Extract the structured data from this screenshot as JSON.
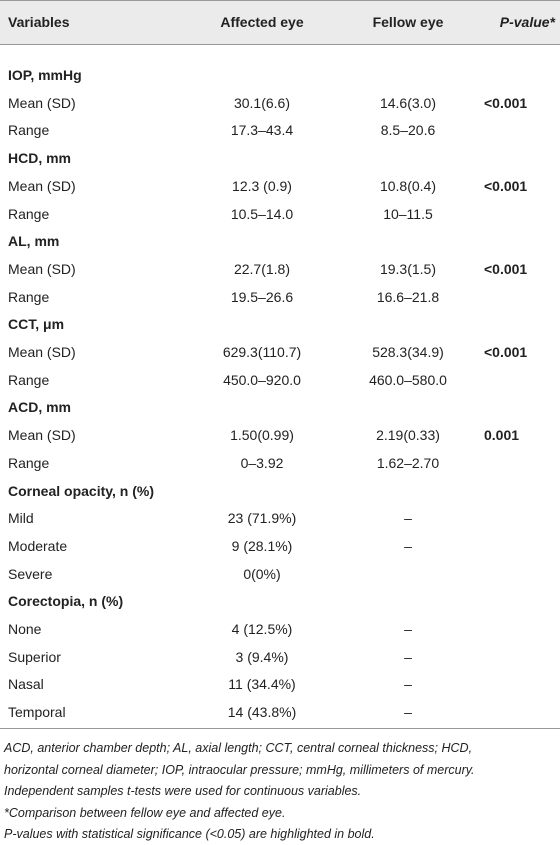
{
  "table": {
    "header": [
      "Variables",
      "Affected eye",
      "Fellow eye",
      "P-value*"
    ],
    "sections": [
      {
        "title": "IOP, mmHg",
        "rows": [
          [
            "Mean (SD)",
            "30.1(6.6)",
            "14.6(3.0)",
            "<0.001"
          ],
          [
            "Range",
            "17.3–43.4",
            "8.5–20.6"
          ]
        ]
      },
      {
        "title": "HCD, mm",
        "rows": [
          [
            "Mean (SD)",
            "12.3 (0.9)",
            "10.8(0.4)",
            "<0.001"
          ],
          [
            "Range",
            "10.5–14.0",
            "10–11.5"
          ]
        ]
      },
      {
        "title": "AL, mm",
        "rows": [
          [
            "Mean (SD)",
            "22.7(1.8)",
            "19.3(1.5)",
            "<0.001"
          ],
          [
            "Range",
            "19.5–26.6",
            "16.6–21.8"
          ]
        ]
      },
      {
        "title": "CCT, μm",
        "rows": [
          [
            "Mean (SD)",
            "629.3(110.7)",
            "528.3(34.9)",
            "<0.001"
          ],
          [
            "Range",
            "450.0–920.0",
            "460.0–580.0"
          ]
        ]
      },
      {
        "title": "ACD, mm",
        "rows": [
          [
            "Mean (SD)",
            "1.50(0.99)",
            "2.19(0.33)",
            "0.001"
          ],
          [
            "Range",
            "0–3.92",
            "1.62–2.70"
          ]
        ]
      },
      {
        "title": "Corneal opacity, n (%)",
        "rows": [
          [
            "Mild",
            "23 (71.9%)",
            "–"
          ],
          [
            "Moderate",
            "9 (28.1%)",
            "–"
          ],
          [
            "Severe",
            "0(0%)"
          ]
        ]
      },
      {
        "title": "Corectopia, n (%)",
        "rows": [
          [
            "None",
            "4 (12.5%)",
            "–"
          ],
          [
            "Superior",
            "3 (9.4%)",
            "–"
          ],
          [
            "Nasal",
            "11 (34.4%)",
            "–"
          ],
          [
            "Temporal",
            "14 (43.8%)",
            "–"
          ]
        ]
      }
    ]
  },
  "footnotes": [
    "ACD, anterior chamber depth; AL, axial length; CCT, central corneal thickness; HCD,",
    "horizontal corneal diameter; IOP, intraocular pressure; mmHg, millimeters of mercury.",
    "Independent samples t-tests were used for continuous variables.",
    "*Comparison between fellow eye and affected eye.",
    "P-values with statistical significance (<0.05) are highlighted in bold."
  ]
}
